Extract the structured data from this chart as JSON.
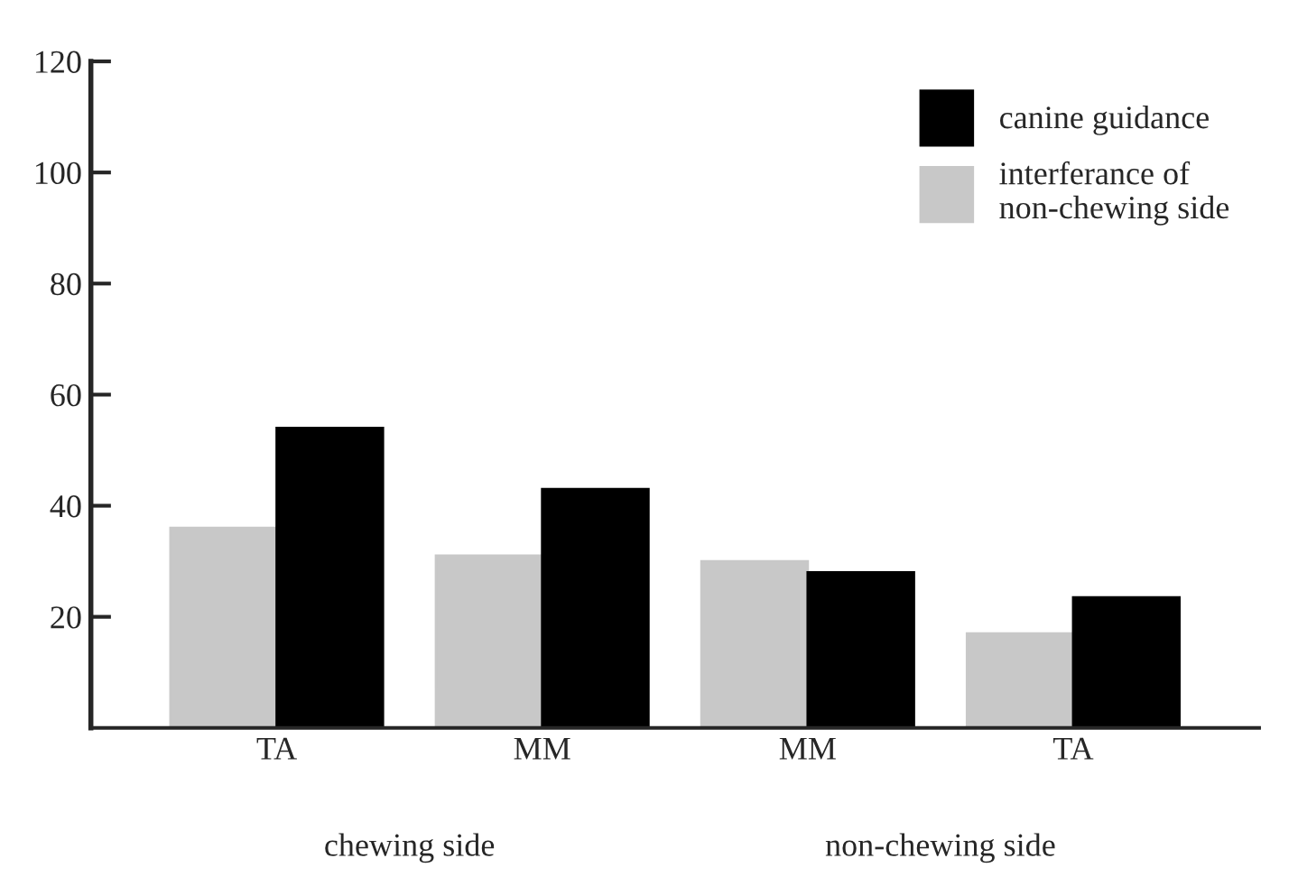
{
  "chart_data": {
    "type": "bar",
    "categories": [
      "TA",
      "MM",
      "MM",
      "TA"
    ],
    "series": [
      {
        "name": "interferance of\nnon-chewing side",
        "color": "#c8c8c8",
        "values": [
          36,
          31,
          30,
          17
        ]
      },
      {
        "name": "canine guidance",
        "color": "#000000",
        "values": [
          54,
          43,
          28,
          23.5
        ]
      }
    ],
    "ylim": [
      0,
      120
    ],
    "yticks": [
      20,
      40,
      60,
      80,
      100,
      120
    ],
    "grid": false,
    "legend": "top right",
    "annotations": [
      "chewing side",
      "non-chewing side"
    ]
  }
}
